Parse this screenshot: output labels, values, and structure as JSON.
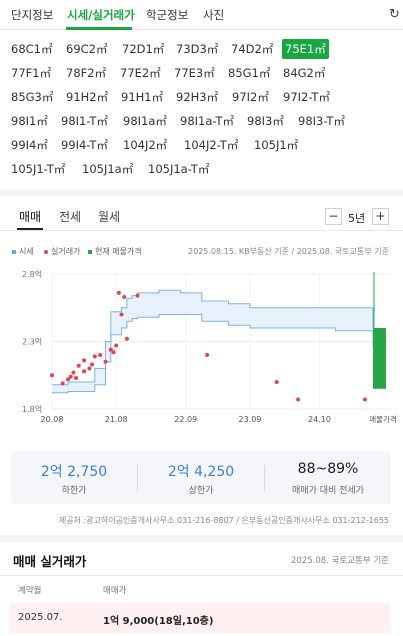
{
  "top_tabs": [
    {
      "label": "단지정보",
      "active": false
    },
    {
      "label": "시세/실거래가",
      "active": true
    },
    {
      "label": "학군정보",
      "active": false
    },
    {
      "label": "사진",
      "active": false
    }
  ],
  "areas": [
    "68C1㎡",
    "69C2㎡",
    "72D1㎡",
    "73D3㎡",
    "74D2㎡",
    "75E1㎡",
    "77F1㎡",
    "78F2㎡",
    "77E2㎡",
    "77E3㎡",
    "85G1㎡",
    "84G2㎡",
    "85G3㎡",
    "91H2㎡",
    "91H1㎡",
    "92H3㎡",
    "97I2㎡",
    "97I2-T㎡",
    "98I1㎡",
    "98I1-T㎡",
    "98I1a㎡",
    "98I1a-T㎡",
    "98I3㎡",
    "98I3-T㎡",
    "99I4㎡",
    "99I4-T㎡",
    "104J2㎡",
    "104J2-T㎡",
    "105J1㎡",
    "105J1-T㎡",
    "105J1a㎡",
    "105J1a-T㎡"
  ],
  "selected_area": "75E1㎡",
  "price_tabs": [
    {
      "label": "매매",
      "active": true
    },
    {
      "label": "전세",
      "active": false
    },
    {
      "label": "월세",
      "active": false
    }
  ],
  "period": {
    "minus": "−",
    "label": "5년",
    "plus": "+"
  },
  "legend": [
    {
      "label": "시세",
      "color": "#6aa6e4"
    },
    {
      "label": "실거래가",
      "color": "#e8434a"
    },
    {
      "label": "현재 매물가격",
      "color": "#27a744"
    }
  ],
  "source_note": "2025.08.15. KB부동산 기준 / 2025.08. 국토교통부 기준",
  "chart_data": {
    "type": "line",
    "y_ticks": [
      "2.8억",
      "2.3억",
      "1.8억"
    ],
    "x_ticks": [
      "20.08",
      "21.08",
      "22.09",
      "23.09",
      "24.10"
    ],
    "x_extra_label": "매물가격",
    "ylim": [
      1.8,
      2.8
    ],
    "x_range": [
      "2020-08",
      "2025-08"
    ],
    "price_band": {
      "months": [
        0,
        3,
        8,
        10,
        11,
        13,
        14,
        15,
        16,
        20,
        24,
        28,
        33,
        37,
        40,
        44,
        49,
        53,
        58,
        60
      ],
      "upper": [
        1.98,
        2.0,
        2.1,
        2.3,
        2.52,
        2.55,
        2.62,
        2.64,
        2.66,
        2.68,
        2.66,
        2.6,
        2.58,
        2.55,
        2.55,
        2.55,
        2.55,
        2.55,
        2.55,
        2.4
      ],
      "lower": [
        1.92,
        1.93,
        1.98,
        2.15,
        2.35,
        2.4,
        2.45,
        2.47,
        2.48,
        2.5,
        2.5,
        2.45,
        2.42,
        2.4,
        2.4,
        2.4,
        2.4,
        2.38,
        2.38,
        2.25
      ]
    },
    "transactions": [
      {
        "month": 0,
        "price": 2.05
      },
      {
        "month": 2,
        "price": 1.99
      },
      {
        "month": 3,
        "price": 2.02
      },
      {
        "month": 3.5,
        "price": 2.04
      },
      {
        "month": 4,
        "price": 2.07
      },
      {
        "month": 4.5,
        "price": 2.03
      },
      {
        "month": 5,
        "price": 2.12
      },
      {
        "month": 6,
        "price": 2.08
      },
      {
        "month": 6,
        "price": 2.16
      },
      {
        "month": 7,
        "price": 2.1
      },
      {
        "month": 7.5,
        "price": 2.13
      },
      {
        "month": 8,
        "price": 2.19
      },
      {
        "month": 9,
        "price": 2.2
      },
      {
        "month": 10,
        "price": 2.15
      },
      {
        "month": 11,
        "price": 2.24
      },
      {
        "month": 11.5,
        "price": 2.22
      },
      {
        "month": 12,
        "price": 2.27
      },
      {
        "month": 12.5,
        "price": 2.66
      },
      {
        "month": 13,
        "price": 2.5
      },
      {
        "month": 13.5,
        "price": 2.63
      },
      {
        "month": 14,
        "price": 2.32
      },
      {
        "month": 16,
        "price": 2.64
      },
      {
        "month": 29,
        "price": 2.2
      },
      {
        "month": 42,
        "price": 2.0
      },
      {
        "month": 46,
        "price": 1.87
      },
      {
        "month": 58.5,
        "price": 1.87
      }
    ],
    "listing": {
      "low": 1.95,
      "high": 2.4
    }
  },
  "summary": [
    {
      "value": "2억 2,750",
      "label": "하한가"
    },
    {
      "value": "2억 4,250",
      "label": "상한가"
    },
    {
      "value": "88~89%",
      "label": "매매가 대비 전세가"
    }
  ],
  "provider": "제공처 :광고하이공인중개사사무소 031-216-8807 / 은부동산공인중개사사무소 031-212-1655",
  "deals": {
    "title": "매매 실거래가",
    "source": "2025.08. 국토교통부 기준",
    "columns": [
      "계약월",
      "매매가"
    ],
    "rows": [
      {
        "month": "2025.07.",
        "price": "1억 9,000(18일,10층)"
      }
    ]
  },
  "colors": {
    "accent": "#17a940",
    "band_line": "#7ab4ea",
    "band_fill": "#e6f1fc",
    "dot": "#e8434a",
    "listing": "#27a744"
  }
}
